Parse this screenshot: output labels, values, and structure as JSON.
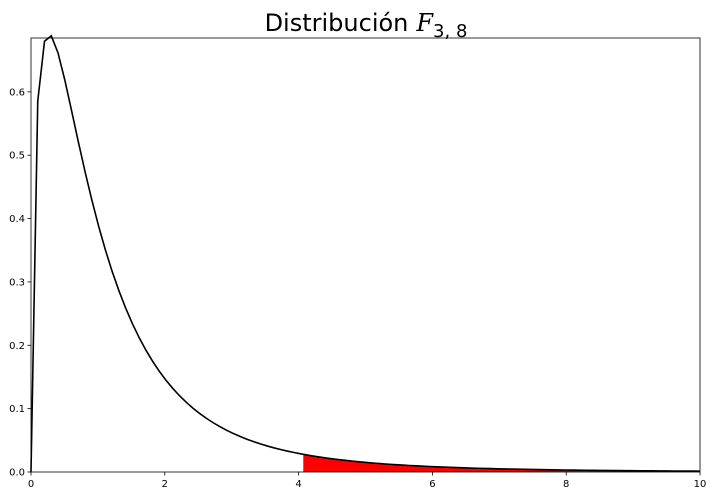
{
  "chart_data": {
    "type": "line",
    "title": {
      "text": "Distribución",
      "math_symbol": "F",
      "subscript": "3, 8"
    },
    "xlabel": "",
    "ylabel": "",
    "xlim": [
      0,
      10
    ],
    "ylim": [
      0,
      0.685
    ],
    "xticks": [
      0,
      2,
      4,
      6,
      8,
      10
    ],
    "yticks": [
      0.0,
      0.1,
      0.2,
      0.3,
      0.4,
      0.5,
      0.6
    ],
    "xtick_labels": [
      "0",
      "2",
      "4",
      "6",
      "8",
      "10"
    ],
    "ytick_labels": [
      "0.0",
      "0.1",
      "0.2",
      "0.3",
      "0.4",
      "0.5",
      "0.6"
    ],
    "grid": false,
    "legend": "none",
    "distribution": {
      "family": "F",
      "df1": 3,
      "df2": 8
    },
    "shaded_region": {
      "x_start": 4.07,
      "x_end": 10,
      "color": "#ff0000"
    },
    "line_color": "#000000"
  }
}
